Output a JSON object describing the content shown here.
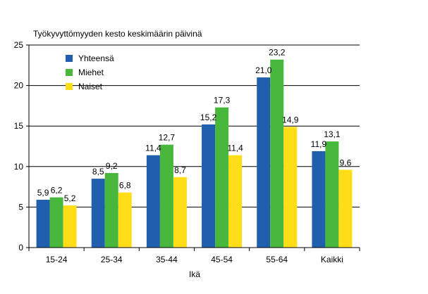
{
  "chart_data": {
    "type": "bar",
    "title": "Työkyvyttömyyden kesto keskimäärin päivinä",
    "xlabel": "Ikä",
    "ylabel": "",
    "ylim": [
      0,
      25
    ],
    "yticks": [
      0,
      5,
      10,
      15,
      20,
      25
    ],
    "grid": true,
    "legend_position": "top-left",
    "categories": [
      "15-24",
      "25-34",
      "35-44",
      "45-54",
      "55-64",
      "Kaikki"
    ],
    "series": [
      {
        "name": "Yhteensä",
        "color": "#1f5fad",
        "values": [
          5.9,
          8.5,
          11.4,
          15.2,
          21.0,
          11.9
        ],
        "labels": [
          "5,9",
          "8,5",
          "11,4",
          "15,2",
          "21,0",
          "11,9"
        ]
      },
      {
        "name": "Miehet",
        "color": "#48b83d",
        "values": [
          6.2,
          9.2,
          12.7,
          17.3,
          23.2,
          13.1
        ],
        "labels": [
          "6,2",
          "9,2",
          "12,7",
          "17,3",
          "23,2",
          "13,1"
        ]
      },
      {
        "name": "Naiset",
        "color": "#ffde17",
        "values": [
          5.2,
          6.8,
          8.7,
          11.4,
          14.9,
          9.6
        ],
        "labels": [
          "5,2",
          "6,8",
          "8,7",
          "11,4",
          "14,9",
          "9,6"
        ]
      }
    ]
  }
}
